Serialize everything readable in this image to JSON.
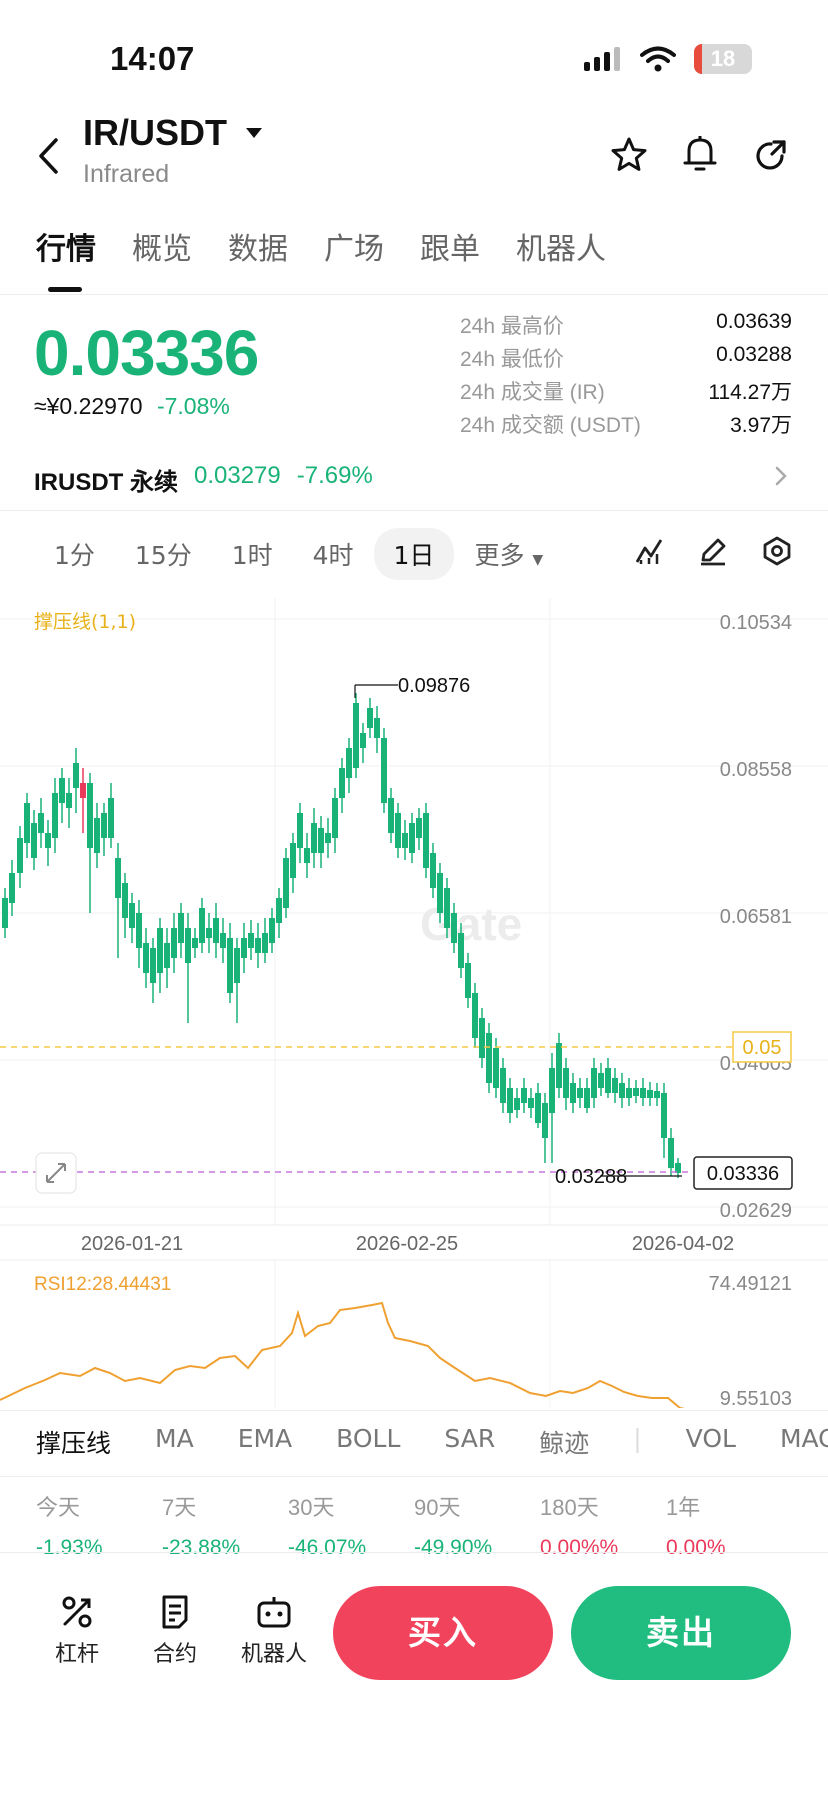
{
  "status_bar": {
    "time": "14:07",
    "battery": "18"
  },
  "header": {
    "pair": "IR/USDT",
    "subtitle": "Infrared"
  },
  "tabs": [
    "行情",
    "概览",
    "数据",
    "广场",
    "跟单",
    "机器人"
  ],
  "ticker": {
    "price": "0.03336",
    "cny": "≈¥0.22970",
    "change": "-7.08%",
    "stats": [
      {
        "label": "24h 最高价",
        "value": "0.03639"
      },
      {
        "label": "24h 最低价",
        "value": "0.03288"
      },
      {
        "label": "24h 成交量 (IR)",
        "value": "114.27万"
      },
      {
        "label": "24h 成交额 (USDT)",
        "value": "3.97万"
      }
    ],
    "perp": {
      "name": "IRUSDT 永续",
      "price": "0.03279",
      "change": "-7.69%"
    }
  },
  "timeframes": [
    "1分",
    "15分",
    "1时",
    "4时",
    "1日",
    "更多"
  ],
  "timeframe_active": "1日",
  "chart": {
    "indicator_label": "撑压线(1,1)",
    "y_ticks": [
      "0.10534",
      "0.08558",
      "0.06581",
      "0.04605",
      "0.02629"
    ],
    "x_ticks": [
      "2026-01-21",
      "2026-02-25",
      "2026-04-02"
    ],
    "high_label": "0.09876",
    "low_label": "0.03288",
    "support_label": "0.05",
    "current_label": "0.03336",
    "watermark": "Gate",
    "rsi_label": "RSI12:28.44431",
    "rsi_max": "74.49121",
    "rsi_min": "9.55103",
    "colors": {
      "up": "#ea3a5b",
      "down": "#19b378",
      "rsi": "#f0a030",
      "support": "#f5c842",
      "current": "#c777d8"
    }
  },
  "indicator_tabs": [
    "撑压线",
    "MA",
    "EMA",
    "BOLL",
    "SAR",
    "鲸迹",
    "VOL",
    "MACD"
  ],
  "performance": [
    {
      "label": "今天",
      "value": "-1.93%",
      "tone": "green"
    },
    {
      "label": "7天",
      "value": "-23.88%",
      "tone": "green"
    },
    {
      "label": "30天",
      "value": "-46.07%",
      "tone": "green"
    },
    {
      "label": "90天",
      "value": "-49.90%",
      "tone": "green"
    },
    {
      "label": "180天",
      "value": "0.00%%",
      "tone": "red"
    },
    {
      "label": "1年",
      "value": "0.00%",
      "tone": "red"
    }
  ],
  "bottom": {
    "leverage": "杠杆",
    "contract": "合约",
    "bot": "机器人",
    "buy": "买入",
    "sell": "卖出"
  }
}
